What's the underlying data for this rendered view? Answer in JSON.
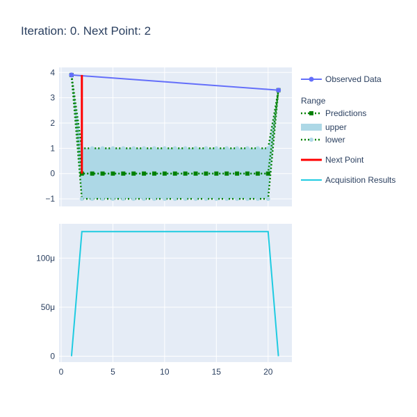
{
  "title": "Iteration: 0. Next Point: 2",
  "colors": {
    "plot_bg": "#e5ecf6",
    "grid": "#ffffff",
    "observed": "#636efa",
    "predictions": "#008000",
    "band_fill": "#add8e6",
    "next_point": "#ff0000",
    "acquisition": "#1ecbe1",
    "text": "#2a3f5f"
  },
  "legend": {
    "observed_label": "Observed Data",
    "group_title": "Range",
    "predictions_label": "Predictions",
    "upper_label": "upper",
    "lower_label": "lower",
    "next_point_label": "Next Point",
    "acquisition_label": "Acquisition Results"
  },
  "chart_data": [
    {
      "type": "line",
      "panel": "top",
      "xlim": [
        -0.2,
        22.3
      ],
      "ylim": [
        -1.3,
        4.2
      ],
      "x_ticks": [
        0,
        5,
        10,
        15,
        20
      ],
      "y_ticks": [
        -1,
        0,
        1,
        2,
        3,
        4
      ],
      "y_tick_labels": [
        "−1",
        "0",
        "1",
        "2",
        "3",
        "4"
      ],
      "grid": true,
      "series": [
        {
          "name": "Observed Data",
          "x": [
            1,
            21
          ],
          "y": [
            3.9,
            3.3
          ]
        },
        {
          "name": "Predictions",
          "x": [
            1,
            2,
            3,
            4,
            5,
            6,
            7,
            8,
            9,
            10,
            11,
            12,
            13,
            14,
            15,
            16,
            17,
            18,
            19,
            20,
            21
          ],
          "y": [
            3.9,
            0,
            0,
            0,
            0,
            0,
            0,
            0,
            0,
            0,
            0,
            0,
            0,
            0,
            0,
            0,
            0,
            0,
            0,
            0,
            3.3
          ]
        },
        {
          "name": "upper",
          "x": [
            1,
            2,
            3,
            4,
            5,
            6,
            7,
            8,
            9,
            10,
            11,
            12,
            13,
            14,
            15,
            16,
            17,
            18,
            19,
            20,
            21
          ],
          "y": [
            3.9,
            1,
            1,
            1,
            1,
            1,
            1,
            1,
            1,
            1,
            1,
            1,
            1,
            1,
            1,
            1,
            1,
            1,
            1,
            1,
            3.3
          ]
        },
        {
          "name": "lower",
          "x": [
            1,
            2,
            3,
            4,
            5,
            6,
            7,
            8,
            9,
            10,
            11,
            12,
            13,
            14,
            15,
            16,
            17,
            18,
            19,
            20,
            21
          ],
          "y": [
            3.9,
            -1,
            -1,
            -1,
            -1,
            -1,
            -1,
            -1,
            -1,
            -1,
            -1,
            -1,
            -1,
            -1,
            -1,
            -1,
            -1,
            -1,
            -1,
            -1,
            3.3
          ]
        },
        {
          "name": "Next Point",
          "x": [
            2,
            2
          ],
          "y": [
            0,
            3.9
          ]
        }
      ]
    },
    {
      "type": "line",
      "panel": "bottom",
      "xlim": [
        -0.2,
        22.3
      ],
      "ylim": [
        -6e-06,
        0.000135
      ],
      "x_ticks": [
        0,
        5,
        10,
        15,
        20
      ],
      "x_tick_labels": [
        "0",
        "5",
        "10",
        "15",
        "20"
      ],
      "y_ticks": [
        0,
        5e-05,
        0.0001
      ],
      "y_tick_labels": [
        "0",
        "50μ",
        "100μ"
      ],
      "grid": true,
      "series": [
        {
          "name": "Acquisition Results",
          "x": [
            1,
            2,
            3,
            4,
            5,
            6,
            7,
            8,
            9,
            10,
            11,
            12,
            13,
            14,
            15,
            16,
            17,
            18,
            19,
            20,
            21
          ],
          "y": [
            0,
            0.000127,
            0.000127,
            0.000127,
            0.000127,
            0.000127,
            0.000127,
            0.000127,
            0.000127,
            0.000127,
            0.000127,
            0.000127,
            0.000127,
            0.000127,
            0.000127,
            0.000127,
            0.000127,
            0.000127,
            0.000127,
            0.000127,
            0
          ]
        }
      ]
    }
  ]
}
